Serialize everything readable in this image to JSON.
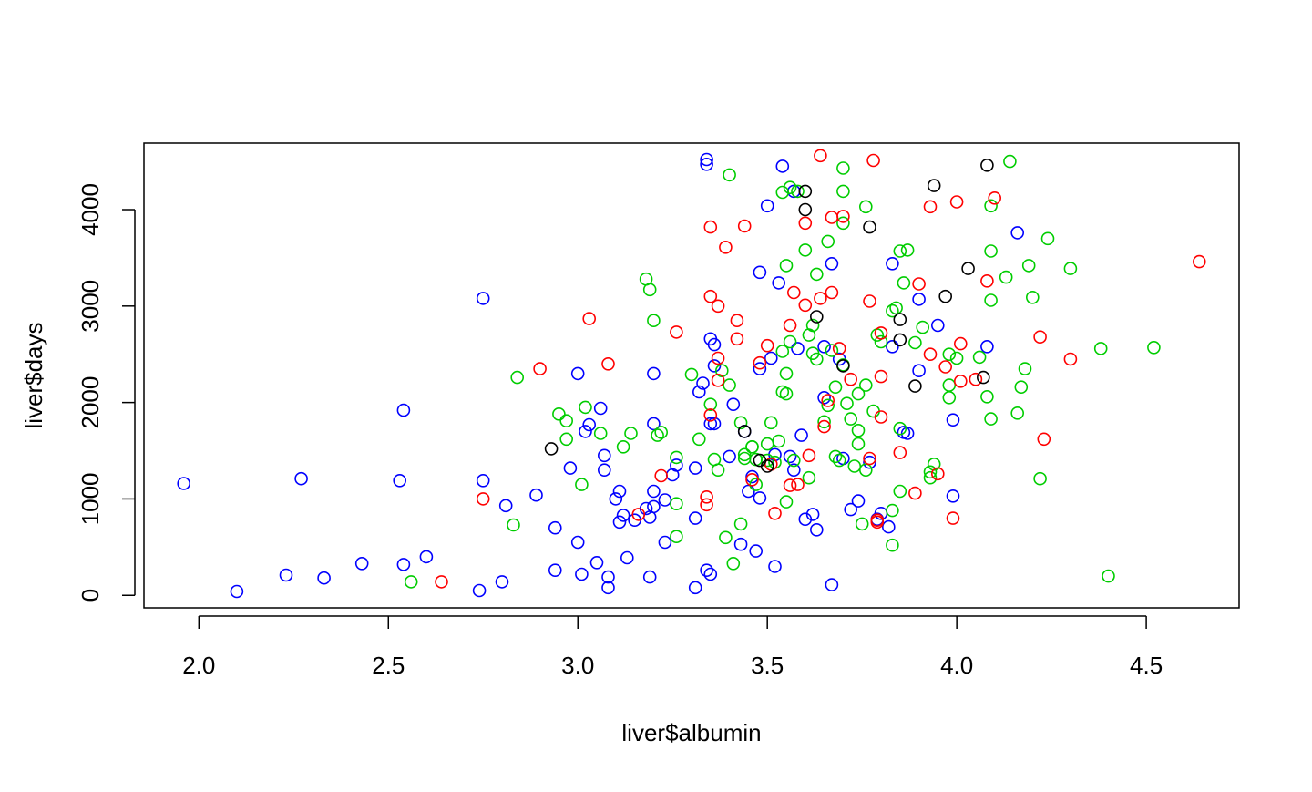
{
  "chart_data": {
    "type": "scatter",
    "title": "",
    "xlabel": "liver$albumin",
    "ylabel": "liver$days",
    "xlim": [
      1.855,
      4.745
    ],
    "ylim": [
      -130,
      4690
    ],
    "x_ticks": [
      2.0,
      2.5,
      3.0,
      3.5,
      4.0,
      4.5
    ],
    "x_tick_labels": [
      "2.0",
      "2.5",
      "3.0",
      "3.5",
      "4.0",
      "4.5"
    ],
    "y_ticks": [
      0,
      1000,
      2000,
      3000,
      4000
    ],
    "y_tick_labels": [
      "0",
      "1000",
      "2000",
      "3000",
      "4000"
    ],
    "grid": false,
    "legend": "none",
    "marker": "open-circle",
    "series": [
      {
        "color": "#0000FF",
        "points": [
          [
            1.96,
            1160
          ],
          [
            2.1,
            40
          ],
          [
            2.23,
            210
          ],
          [
            2.27,
            1210
          ],
          [
            2.33,
            180
          ],
          [
            2.43,
            330
          ],
          [
            2.53,
            1190
          ],
          [
            2.54,
            1920
          ],
          [
            2.54,
            320
          ],
          [
            2.6,
            400
          ],
          [
            2.74,
            50
          ],
          [
            2.75,
            1190
          ],
          [
            2.75,
            3080
          ],
          [
            2.8,
            140
          ],
          [
            2.81,
            930
          ],
          [
            2.89,
            1040
          ],
          [
            2.94,
            700
          ],
          [
            2.94,
            260
          ],
          [
            2.98,
            1320
          ],
          [
            3.0,
            2300
          ],
          [
            3.0,
            550
          ],
          [
            3.01,
            220
          ],
          [
            3.02,
            1700
          ],
          [
            3.03,
            1770
          ],
          [
            3.05,
            340
          ],
          [
            3.06,
            1940
          ],
          [
            3.07,
            1450
          ],
          [
            3.07,
            1300
          ],
          [
            3.08,
            190
          ],
          [
            3.08,
            80
          ],
          [
            3.1,
            1000
          ],
          [
            3.11,
            1080
          ],
          [
            3.11,
            760
          ],
          [
            3.12,
            830
          ],
          [
            3.13,
            390
          ],
          [
            3.15,
            780
          ],
          [
            3.18,
            900
          ],
          [
            3.19,
            810
          ],
          [
            3.19,
            190
          ],
          [
            3.2,
            1780
          ],
          [
            3.2,
            1080
          ],
          [
            3.2,
            920
          ],
          [
            3.2,
            2300
          ],
          [
            3.23,
            550
          ],
          [
            3.23,
            990
          ],
          [
            3.25,
            1250
          ],
          [
            3.26,
            1350
          ],
          [
            3.31,
            800
          ],
          [
            3.31,
            1320
          ],
          [
            3.31,
            80
          ],
          [
            3.32,
            2110
          ],
          [
            3.33,
            2200
          ],
          [
            3.34,
            4520
          ],
          [
            3.34,
            4470
          ],
          [
            3.34,
            260
          ],
          [
            3.35,
            2660
          ],
          [
            3.35,
            220
          ],
          [
            3.35,
            1780
          ],
          [
            3.36,
            1780
          ],
          [
            3.36,
            2600
          ],
          [
            3.36,
            2380
          ],
          [
            3.4,
            1440
          ],
          [
            3.41,
            1980
          ],
          [
            3.43,
            530
          ],
          [
            3.44,
            1700
          ],
          [
            3.45,
            1080
          ],
          [
            3.46,
            1230
          ],
          [
            3.47,
            460
          ],
          [
            3.48,
            1010
          ],
          [
            3.48,
            3350
          ],
          [
            3.48,
            2350
          ],
          [
            3.5,
            4040
          ],
          [
            3.51,
            2460
          ],
          [
            3.52,
            300
          ],
          [
            3.52,
            1460
          ],
          [
            3.53,
            3240
          ],
          [
            3.54,
            4450
          ],
          [
            3.56,
            1440
          ],
          [
            3.57,
            1300
          ],
          [
            3.57,
            4190
          ],
          [
            3.58,
            2560
          ],
          [
            3.59,
            1660
          ],
          [
            3.6,
            790
          ],
          [
            3.62,
            840
          ],
          [
            3.63,
            680
          ],
          [
            3.65,
            2580
          ],
          [
            3.65,
            2050
          ],
          [
            3.67,
            110
          ],
          [
            3.67,
            3440
          ],
          [
            3.69,
            2450
          ],
          [
            3.7,
            1420
          ],
          [
            3.72,
            890
          ],
          [
            3.74,
            980
          ],
          [
            3.77,
            1380
          ],
          [
            3.79,
            790
          ],
          [
            3.8,
            850
          ],
          [
            3.82,
            710
          ],
          [
            3.83,
            3440
          ],
          [
            3.83,
            2580
          ],
          [
            3.86,
            1690
          ],
          [
            3.87,
            1680
          ],
          [
            3.9,
            3070
          ],
          [
            3.9,
            2330
          ],
          [
            3.95,
            2800
          ],
          [
            3.99,
            1030
          ],
          [
            3.99,
            1820
          ],
          [
            4.08,
            2580
          ],
          [
            4.16,
            3760
          ]
        ]
      },
      {
        "color": "#00CD00",
        "points": [
          [
            2.56,
            140
          ],
          [
            2.83,
            730
          ],
          [
            2.84,
            2260
          ],
          [
            2.95,
            1880
          ],
          [
            2.97,
            1810
          ],
          [
            2.97,
            1620
          ],
          [
            3.01,
            1150
          ],
          [
            3.02,
            1950
          ],
          [
            3.06,
            1680
          ],
          [
            3.12,
            1540
          ],
          [
            3.14,
            1680
          ],
          [
            3.18,
            3280
          ],
          [
            3.19,
            3170
          ],
          [
            3.2,
            2850
          ],
          [
            3.21,
            1660
          ],
          [
            3.22,
            1690
          ],
          [
            3.26,
            1430
          ],
          [
            3.26,
            950
          ],
          [
            3.26,
            610
          ],
          [
            3.3,
            2290
          ],
          [
            3.32,
            1620
          ],
          [
            3.35,
            1980
          ],
          [
            3.36,
            1410
          ],
          [
            3.37,
            1300
          ],
          [
            3.38,
            2330
          ],
          [
            3.39,
            600
          ],
          [
            3.4,
            4360
          ],
          [
            3.4,
            2180
          ],
          [
            3.41,
            330
          ],
          [
            3.43,
            1790
          ],
          [
            3.43,
            740
          ],
          [
            3.44,
            1460
          ],
          [
            3.44,
            1420
          ],
          [
            3.46,
            1540
          ],
          [
            3.46,
            1540
          ],
          [
            3.47,
            1410
          ],
          [
            3.47,
            1150
          ],
          [
            3.5,
            1400
          ],
          [
            3.5,
            1570
          ],
          [
            3.51,
            1790
          ],
          [
            3.52,
            1380
          ],
          [
            3.53,
            1600
          ],
          [
            3.54,
            2110
          ],
          [
            3.54,
            2530
          ],
          [
            3.54,
            4180
          ],
          [
            3.55,
            970
          ],
          [
            3.55,
            2090
          ],
          [
            3.55,
            2300
          ],
          [
            3.55,
            3420
          ],
          [
            3.56,
            4230
          ],
          [
            3.56,
            2630
          ],
          [
            3.57,
            1400
          ],
          [
            3.58,
            4190
          ],
          [
            3.6,
            3580
          ],
          [
            3.61,
            2700
          ],
          [
            3.61,
            1220
          ],
          [
            3.62,
            2800
          ],
          [
            3.62,
            2510
          ],
          [
            3.63,
            3330
          ],
          [
            3.63,
            2450
          ],
          [
            3.65,
            1800
          ],
          [
            3.66,
            3670
          ],
          [
            3.66,
            1970
          ],
          [
            3.67,
            2540
          ],
          [
            3.68,
            1440
          ],
          [
            3.68,
            2160
          ],
          [
            3.69,
            1400
          ],
          [
            3.7,
            4430
          ],
          [
            3.7,
            4190
          ],
          [
            3.7,
            3860
          ],
          [
            3.7,
            2390
          ],
          [
            3.71,
            1990
          ],
          [
            3.72,
            1830
          ],
          [
            3.73,
            1340
          ],
          [
            3.74,
            1710
          ],
          [
            3.74,
            1570
          ],
          [
            3.74,
            2090
          ],
          [
            3.75,
            740
          ],
          [
            3.76,
            1300
          ],
          [
            3.76,
            2180
          ],
          [
            3.76,
            4030
          ],
          [
            3.78,
            1910
          ],
          [
            3.79,
            2700
          ],
          [
            3.8,
            2630
          ],
          [
            3.83,
            520
          ],
          [
            3.83,
            880
          ],
          [
            3.83,
            2950
          ],
          [
            3.84,
            2980
          ],
          [
            3.85,
            1730
          ],
          [
            3.85,
            1080
          ],
          [
            3.85,
            3570
          ],
          [
            3.86,
            3240
          ],
          [
            3.87,
            3580
          ],
          [
            3.89,
            2620
          ],
          [
            3.91,
            2780
          ],
          [
            3.93,
            1280
          ],
          [
            3.93,
            1220
          ],
          [
            3.94,
            1360
          ],
          [
            3.98,
            2500
          ],
          [
            3.98,
            2050
          ],
          [
            3.98,
            2180
          ],
          [
            4.0,
            2460
          ],
          [
            4.06,
            2470
          ],
          [
            4.08,
            2060
          ],
          [
            4.09,
            4040
          ],
          [
            4.09,
            3570
          ],
          [
            4.09,
            3060
          ],
          [
            4.09,
            1830
          ],
          [
            4.13,
            3300
          ],
          [
            4.14,
            4500
          ],
          [
            4.16,
            1890
          ],
          [
            4.17,
            2160
          ],
          [
            4.18,
            2350
          ],
          [
            4.19,
            3420
          ],
          [
            4.2,
            3090
          ],
          [
            4.22,
            1210
          ],
          [
            4.24,
            3700
          ],
          [
            4.3,
            3390
          ],
          [
            4.38,
            2560
          ],
          [
            4.4,
            200
          ],
          [
            4.52,
            2570
          ]
        ]
      },
      {
        "color": "#FF0000",
        "points": [
          [
            2.64,
            140
          ],
          [
            2.75,
            1000
          ],
          [
            2.9,
            2350
          ],
          [
            3.03,
            2870
          ],
          [
            3.08,
            2400
          ],
          [
            3.16,
            840
          ],
          [
            3.22,
            1240
          ],
          [
            3.26,
            2730
          ],
          [
            3.34,
            1020
          ],
          [
            3.34,
            940
          ],
          [
            3.35,
            3820
          ],
          [
            3.35,
            3100
          ],
          [
            3.35,
            1870
          ],
          [
            3.37,
            3000
          ],
          [
            3.37,
            2460
          ],
          [
            3.37,
            2230
          ],
          [
            3.39,
            3610
          ],
          [
            3.42,
            2850
          ],
          [
            3.42,
            2660
          ],
          [
            3.44,
            3830
          ],
          [
            3.46,
            1200
          ],
          [
            3.48,
            2410
          ],
          [
            3.5,
            2590
          ],
          [
            3.51,
            1360
          ],
          [
            3.52,
            850
          ],
          [
            3.56,
            2800
          ],
          [
            3.56,
            1140
          ],
          [
            3.57,
            3140
          ],
          [
            3.58,
            1150
          ],
          [
            3.6,
            3860
          ],
          [
            3.6,
            3010
          ],
          [
            3.61,
            1450
          ],
          [
            3.64,
            4560
          ],
          [
            3.64,
            3080
          ],
          [
            3.65,
            1750
          ],
          [
            3.66,
            2020
          ],
          [
            3.67,
            3920
          ],
          [
            3.67,
            3140
          ],
          [
            3.69,
            2560
          ],
          [
            3.7,
            3930
          ],
          [
            3.72,
            2240
          ],
          [
            3.77,
            3050
          ],
          [
            3.77,
            1420
          ],
          [
            3.78,
            4510
          ],
          [
            3.79,
            760
          ],
          [
            3.79,
            780
          ],
          [
            3.8,
            2270
          ],
          [
            3.8,
            1850
          ],
          [
            3.8,
            2720
          ],
          [
            3.85,
            1480
          ],
          [
            3.89,
            1060
          ],
          [
            3.9,
            3230
          ],
          [
            3.93,
            4030
          ],
          [
            3.93,
            2500
          ],
          [
            3.95,
            1260
          ],
          [
            3.97,
            2370
          ],
          [
            3.99,
            800
          ],
          [
            4.0,
            4080
          ],
          [
            4.01,
            2610
          ],
          [
            4.01,
            2220
          ],
          [
            4.05,
            2240
          ],
          [
            4.08,
            3260
          ],
          [
            4.1,
            4120
          ],
          [
            4.22,
            2680
          ],
          [
            4.23,
            1620
          ],
          [
            4.3,
            2450
          ],
          [
            4.64,
            3460
          ]
        ]
      },
      {
        "color": "#000000",
        "points": [
          [
            2.93,
            1520
          ],
          [
            3.44,
            1700
          ],
          [
            3.48,
            1400
          ],
          [
            3.5,
            1340
          ],
          [
            3.6,
            4190
          ],
          [
            3.6,
            4000
          ],
          [
            3.63,
            2890
          ],
          [
            3.7,
            2380
          ],
          [
            3.77,
            3820
          ],
          [
            3.85,
            2860
          ],
          [
            3.85,
            2650
          ],
          [
            3.89,
            2170
          ],
          [
            3.94,
            4250
          ],
          [
            3.97,
            3100
          ],
          [
            4.03,
            3390
          ],
          [
            4.07,
            2260
          ],
          [
            4.08,
            4460
          ]
        ]
      }
    ]
  }
}
